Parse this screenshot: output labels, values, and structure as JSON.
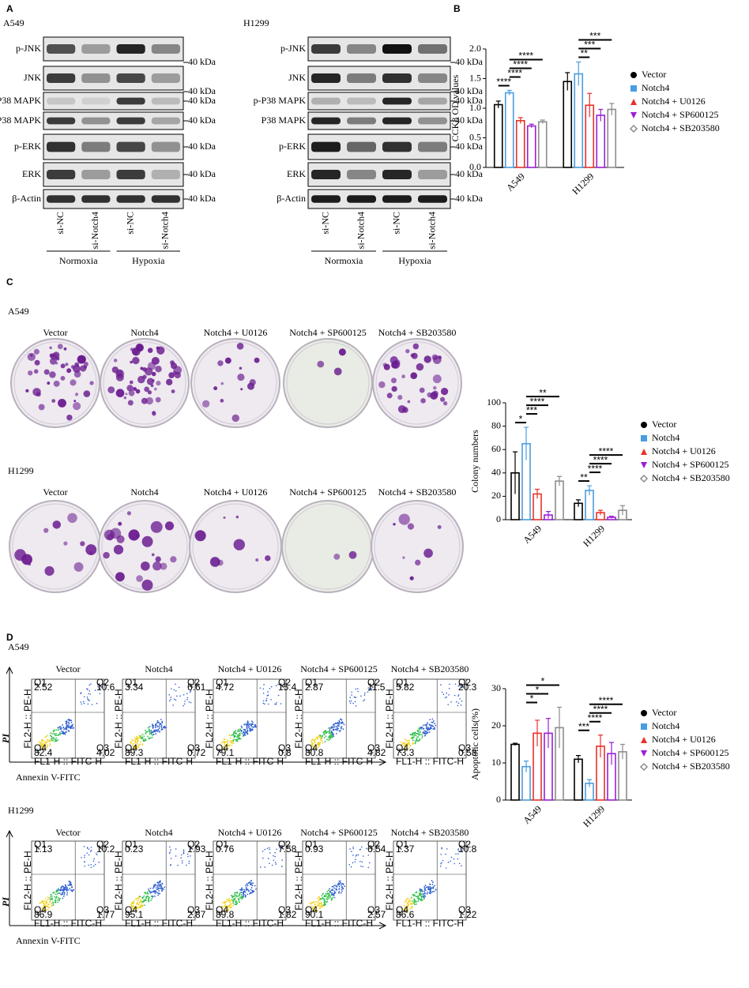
{
  "panel_labels": [
    "A",
    "B",
    "C",
    "D"
  ],
  "groups": [
    "Vector",
    "Notch4",
    "Notch4 + U0126",
    "Notch4 + SP600125",
    "Notch4 + SB203580"
  ],
  "blot": {
    "kda_label": "40 kDa",
    "proteins": [
      "p-JNK",
      "JNK",
      "p-P38 MAPK",
      "P38 MAPK",
      "p-ERK",
      "ERK",
      "β-Actin"
    ],
    "panels": [
      {
        "cell_line": "A549"
      },
      {
        "cell_line": "H1299"
      }
    ],
    "lanes": [
      "si-NC",
      "si-Notch4",
      "si-NC",
      "si-Notch4"
    ],
    "conditions": [
      "Normoxia",
      "Hypoxia"
    ]
  },
  "colony": {
    "cell_lines": [
      "A549",
      "H1299"
    ]
  },
  "flow": {
    "y_axis": "PI",
    "x_axis": "Annexin V-FITC",
    "plot_x_label": "FL1-H :: FITC-H",
    "plot_y_label": "FL2-H :: PE-H",
    "quadrants": [
      "Q1",
      "Q2",
      "Q3",
      "Q4"
    ],
    "panels": [
      {
        "cell_line": "A549",
        "values": [
          [
            2.52,
            10.6,
            4.02,
            82.4
          ],
          [
            3.34,
            6.61,
            0.72,
            89.3
          ],
          [
            4.72,
            15.4,
            0.8,
            79.1
          ],
          [
            2.87,
            11.5,
            4.82,
            80.8
          ],
          [
            5.82,
            20.3,
            0.58,
            73.3
          ]
        ]
      },
      {
        "cell_line": "H1299",
        "values": [
          [
            1.13,
            10.2,
            1.77,
            86.9
          ],
          [
            0.23,
            1.93,
            2.87,
            95.1
          ],
          [
            0.76,
            7.58,
            1.82,
            89.8
          ],
          [
            0.93,
            6.54,
            2.57,
            90.1
          ],
          [
            1.37,
            10.8,
            1.22,
            86.6
          ]
        ]
      }
    ]
  },
  "chart_data": [
    {
      "type": "bar",
      "ylabel": "CCK8 OD values",
      "categories": [
        "A549",
        "H1299"
      ],
      "ylim": [
        0,
        2
      ],
      "yticks": [
        {
          "value": 0,
          "label": "0.0"
        },
        {
          "value": 0.5,
          "label": "0.5"
        },
        {
          "value": 1,
          "label": "1.0"
        },
        {
          "value": 1.5,
          "label": "1.5"
        },
        {
          "value": 2,
          "label": "2.0"
        }
      ],
      "series": [
        {
          "name": "Vector",
          "color": "#000000",
          "marker": "circle",
          "values": [
            1.06,
            1.45
          ],
          "errors": [
            0.06,
            0.15
          ]
        },
        {
          "name": "Notch4",
          "color": "#4a9de0",
          "marker": "square",
          "values": [
            1.26,
            1.58
          ],
          "errors": [
            0.04,
            0.2
          ]
        },
        {
          "name": "Notch4 + U0126",
          "color": "#e8312a",
          "marker": "triangle",
          "values": [
            0.79,
            1.05
          ],
          "errors": [
            0.05,
            0.2
          ]
        },
        {
          "name": "Notch4 + SP600125",
          "color": "#9b1fd6",
          "marker": "triangle-down",
          "values": [
            0.7,
            0.88
          ],
          "errors": [
            0.03,
            0.1
          ]
        },
        {
          "name": "Notch4 + SB203580",
          "color": "#8c8c8c",
          "marker": "diamond",
          "values": [
            0.77,
            0.98
          ],
          "errors": [
            0.03,
            0.1
          ]
        }
      ],
      "annotations": [
        [
          "****",
          "****",
          "****",
          "****"
        ],
        [
          "**",
          "***",
          "***"
        ]
      ]
    },
    {
      "type": "bar",
      "ylabel": "Colony numbers",
      "categories": [
        "A549",
        "H1299"
      ],
      "ylim": [
        0,
        100
      ],
      "yticks": [
        0,
        20,
        40,
        60,
        80,
        100
      ],
      "series": [
        {
          "name": "Vector",
          "color": "#000000",
          "marker": "circle",
          "values": [
            40,
            14
          ],
          "errors": [
            18,
            3
          ]
        },
        {
          "name": "Notch4",
          "color": "#4a9de0",
          "marker": "square",
          "values": [
            65,
            25
          ],
          "errors": [
            14,
            4
          ]
        },
        {
          "name": "Notch4 + U0126",
          "color": "#e8312a",
          "marker": "triangle",
          "values": [
            22,
            6
          ],
          "errors": [
            4,
            2
          ]
        },
        {
          "name": "Notch4 + SP600125",
          "color": "#9b1fd6",
          "marker": "triangle-down",
          "values": [
            4,
            2
          ],
          "errors": [
            3,
            1
          ]
        },
        {
          "name": "Notch4 + SB203580",
          "color": "#8c8c8c",
          "marker": "diamond",
          "values": [
            33,
            8
          ],
          "errors": [
            4,
            4
          ]
        }
      ],
      "annotations": [
        [
          "*",
          "***",
          "****",
          "**"
        ],
        [
          "**",
          "****",
          "****",
          "****"
        ]
      ]
    },
    {
      "type": "bar",
      "ylabel": "Apoptotic cells(%)",
      "categories": [
        "A549",
        "H1299"
      ],
      "ylim": [
        0,
        30
      ],
      "yticks": [
        0,
        10,
        20,
        30
      ],
      "series": [
        {
          "name": "Vector",
          "color": "#000000",
          "marker": "circle",
          "values": [
            15,
            11
          ],
          "errors": [
            0.3,
            1
          ]
        },
        {
          "name": "Notch4",
          "color": "#4a9de0",
          "marker": "square",
          "values": [
            9,
            4.5
          ],
          "errors": [
            1.5,
            1
          ]
        },
        {
          "name": "Notch4 + U0126",
          "color": "#e8312a",
          "marker": "triangle",
          "values": [
            18,
            14.5
          ],
          "errors": [
            3.5,
            3
          ]
        },
        {
          "name": "Notch4 + SP600125",
          "color": "#9b1fd6",
          "marker": "triangle-down",
          "values": [
            18,
            12.5
          ],
          "errors": [
            4,
            3
          ]
        },
        {
          "name": "Notch4 + SB203580",
          "color": "#8c8c8c",
          "marker": "diamond",
          "values": [
            19.5,
            13
          ],
          "errors": [
            5.5,
            2
          ]
        }
      ],
      "annotations": [
        [
          "*",
          "*",
          "*"
        ],
        [
          "***",
          "****",
          "****",
          "****"
        ]
      ]
    }
  ]
}
